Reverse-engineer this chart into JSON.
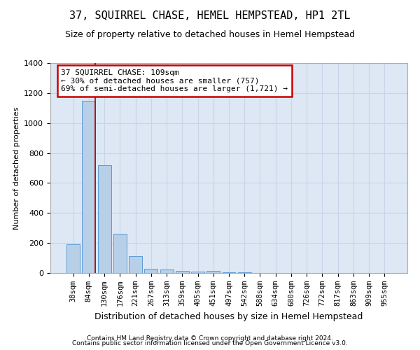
{
  "title": "37, SQUIRREL CHASE, HEMEL HEMPSTEAD, HP1 2TL",
  "subtitle": "Size of property relative to detached houses in Hemel Hempstead",
  "xlabel": "Distribution of detached houses by size in Hemel Hempstead",
  "ylabel": "Number of detached properties",
  "footnote1": "Contains HM Land Registry data © Crown copyright and database right 2024.",
  "footnote2": "Contains public sector information licensed under the Open Government Licence v3.0.",
  "bar_labels": [
    "38sqm",
    "84sqm",
    "130sqm",
    "176sqm",
    "221sqm",
    "267sqm",
    "313sqm",
    "359sqm",
    "405sqm",
    "451sqm",
    "497sqm",
    "542sqm",
    "588sqm",
    "634sqm",
    "680sqm",
    "726sqm",
    "772sqm",
    "817sqm",
    "863sqm",
    "909sqm",
    "955sqm"
  ],
  "bar_values": [
    190,
    1150,
    720,
    260,
    110,
    30,
    25,
    15,
    10,
    15,
    5,
    5,
    2,
    1,
    1,
    1,
    0,
    0,
    0,
    0,
    0
  ],
  "bar_color": "#b8cfe8",
  "bar_edge_color": "#5b9bd5",
  "grid_color": "#c8d4e8",
  "background_color": "#dde8f4",
  "property_line_bin_index": 1.42,
  "annotation_text": "37 SQUIRREL CHASE: 109sqm\n← 30% of detached houses are smaller (757)\n69% of semi-detached houses are larger (1,721) →",
  "annotation_box_color": "#ffffff",
  "annotation_box_edge_color": "#cc0000",
  "line_color": "#aa0000",
  "ylim": [
    0,
    1400
  ],
  "yticks": [
    0,
    200,
    400,
    600,
    800,
    1000,
    1200,
    1400
  ],
  "title_fontsize": 11,
  "subtitle_fontsize": 9,
  "ylabel_fontsize": 8,
  "xlabel_fontsize": 9,
  "tick_fontsize": 7.5,
  "annot_fontsize": 8
}
